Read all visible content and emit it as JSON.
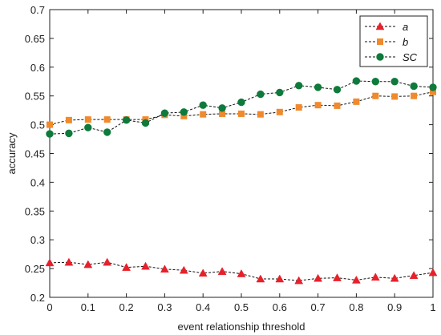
{
  "chart_data": {
    "type": "line",
    "xlabel": "event relationship threshold",
    "ylabel": "accuracy",
    "xlim": [
      0,
      1
    ],
    "ylim": [
      0.2,
      0.7
    ],
    "xticks": [
      0,
      0.1,
      0.2,
      0.3,
      0.4,
      0.5,
      0.6,
      0.7,
      0.8,
      0.9,
      1
    ],
    "yticks": [
      0.2,
      0.25,
      0.3,
      0.35,
      0.4,
      0.45,
      0.5,
      0.55,
      0.6,
      0.65,
      0.7
    ],
    "grid": false,
    "legend_position": "top-right",
    "x": [
      0,
      0.05,
      0.1,
      0.15,
      0.2,
      0.25,
      0.3,
      0.35,
      0.4,
      0.45,
      0.5,
      0.55,
      0.6,
      0.65,
      0.7,
      0.75,
      0.8,
      0.85,
      0.9,
      0.95,
      1
    ],
    "series": [
      {
        "name": "a",
        "marker": "triangle",
        "color": "#e8202a",
        "values": [
          0.26,
          0.261,
          0.257,
          0.261,
          0.252,
          0.254,
          0.249,
          0.247,
          0.242,
          0.245,
          0.241,
          0.232,
          0.232,
          0.229,
          0.233,
          0.234,
          0.23,
          0.235,
          0.233,
          0.238,
          0.243
        ]
      },
      {
        "name": "b",
        "marker": "square",
        "color": "#f08a2c",
        "values": [
          0.5,
          0.508,
          0.509,
          0.509,
          0.509,
          0.509,
          0.517,
          0.515,
          0.518,
          0.519,
          0.519,
          0.518,
          0.522,
          0.53,
          0.534,
          0.533,
          0.54,
          0.55,
          0.549,
          0.55,
          0.557
        ]
      },
      {
        "name": "SC",
        "marker": "circle",
        "color": "#0e7a3c",
        "values": [
          0.484,
          0.485,
          0.495,
          0.487,
          0.508,
          0.503,
          0.52,
          0.522,
          0.534,
          0.529,
          0.539,
          0.553,
          0.556,
          0.568,
          0.565,
          0.561,
          0.576,
          0.575,
          0.575,
          0.567,
          0.565
        ]
      }
    ]
  }
}
